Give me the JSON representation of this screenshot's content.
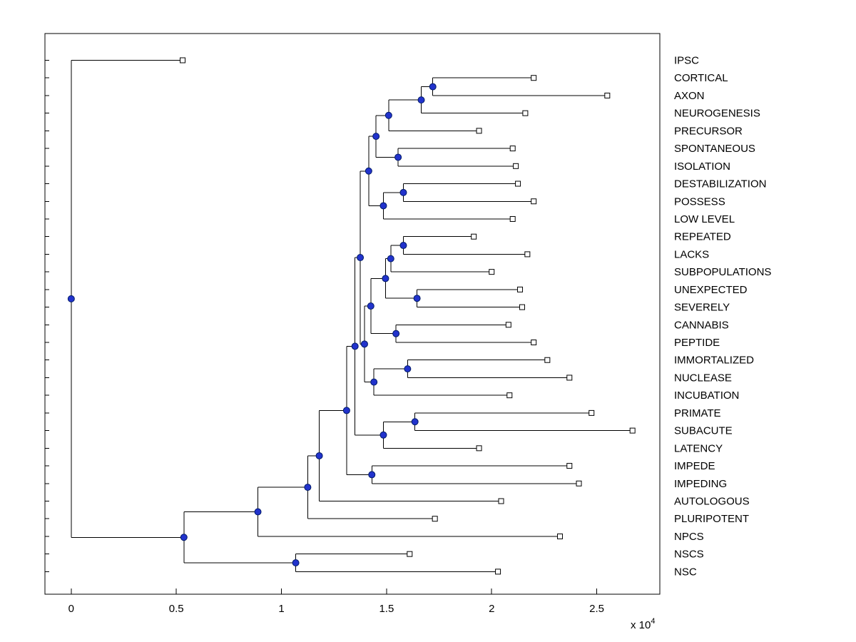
{
  "style": {
    "background": "#ffffff",
    "axis_color": "#000000",
    "line_color": "#000000",
    "text_color": "#000000",
    "node_color": "#2233cc",
    "node_edge_color": "#001a66",
    "leaf_marker_fill": "#ffffff"
  },
  "chart_data": {
    "type": "dendrogram",
    "title": "",
    "description": "Left-rooted phylogenetic/hierarchical-cluster tree; internal nodes shown as filled blue circles, leaves as open squares, leaf names listed on the right",
    "xlim": [
      -1250,
      28000
    ],
    "x_axis": {
      "multiplier": "x 10",
      "exponent": "4",
      "ticks": [
        {
          "label": "0",
          "value": 0
        },
        {
          "label": "0.5",
          "value": 5000
        },
        {
          "label": "1",
          "value": 10000
        },
        {
          "label": "1.5",
          "value": 15000
        },
        {
          "label": "2",
          "value": 20000
        },
        {
          "label": "2.5",
          "value": 25000
        }
      ]
    },
    "leaf_labels": [
      "IPSC",
      "CORTICAL",
      "AXON",
      "NEUROGENESIS",
      "PRECURSOR",
      "SPONTANEOUS",
      "ISOLATION",
      "DESTABILIZATION",
      "POSSESS",
      "LOW LEVEL",
      "REPEATED",
      "LACKS",
      "SUBPOPULATIONS",
      "UNEXPECTED",
      "SEVERELY",
      "CANNABIS",
      "PEPTIDE",
      "IMMORTALIZED",
      "NUCLEASE",
      "INCUBATION",
      "PRIMATE",
      "SUBACUTE",
      "LATENCY",
      "IMPEDE",
      "IMPEDING",
      "AUTOLOGOUS",
      "PLURIPOTENT",
      "NPCS",
      "NSCS",
      "NSC"
    ],
    "tree": {
      "x": 0,
      "children": [
        {
          "name": "IPSC",
          "x": 5300
        },
        {
          "x": 5360,
          "children": [
            {
              "x": 8880,
              "children": [
                {
                  "x": 11250,
                  "children": [
                    {
                      "x": 11800,
                      "children": [
                        {
                          "x": 13100,
                          "children": [
                            {
                              "x": 13500,
                              "children": [
                                {
                                  "x": 13750,
                                  "children": [
                                    {
                                      "x": 14150,
                                      "children": [
                                        {
                                          "x": 14500,
                                          "children": [
                                            {
                                              "x": 15100,
                                              "children": [
                                                {
                                                  "x": 16650,
                                                  "children": [
                                                    {
                                                      "x": 17200,
                                                      "children": [
                                                        {
                                                          "name": "CORTICAL",
                                                          "x": 22000
                                                        },
                                                        {
                                                          "name": "AXON",
                                                          "x": 25500
                                                        }
                                                      ]
                                                    },
                                                    {
                                                      "name": "NEUROGENESIS",
                                                      "x": 21600
                                                    }
                                                  ]
                                                },
                                                {
                                                  "name": "PRECURSOR",
                                                  "x": 19400
                                                }
                                              ]
                                            },
                                            {
                                              "x": 15550,
                                              "children": [
                                                {
                                                  "name": "SPONTANEOUS",
                                                  "x": 21000
                                                },
                                                {
                                                  "name": "ISOLATION",
                                                  "x": 21150
                                                }
                                              ]
                                            }
                                          ]
                                        },
                                        {
                                          "x": 14850,
                                          "children": [
                                            {
                                              "x": 15800,
                                              "children": [
                                                {
                                                  "name": "DESTABILIZATION",
                                                  "x": 21250
                                                },
                                                {
                                                  "name": "POSSESS",
                                                  "x": 22000
                                                }
                                              ]
                                            },
                                            {
                                              "name": "LOW LEVEL",
                                              "x": 21000
                                            }
                                          ]
                                        }
                                      ]
                                    },
                                    {
                                      "x": 13950,
                                      "children": [
                                        {
                                          "x": 14250,
                                          "children": [
                                            {
                                              "x": 14950,
                                              "children": [
                                                {
                                                  "x": 15200,
                                                  "children": [
                                                    {
                                                      "x": 15800,
                                                      "children": [
                                                        {
                                                          "name": "REPEATED",
                                                          "x": 19150
                                                        },
                                                        {
                                                          "name": "LACKS",
                                                          "x": 21700
                                                        }
                                                      ]
                                                    },
                                                    {
                                                      "name": "SUBPOPULATIONS",
                                                      "x": 20000
                                                    }
                                                  ]
                                                },
                                                {
                                                  "x": 16450,
                                                  "children": [
                                                    {
                                                      "name": "UNEXPECTED",
                                                      "x": 21350
                                                    },
                                                    {
                                                      "name": "SEVERELY",
                                                      "x": 21450
                                                    }
                                                  ]
                                                }
                                              ]
                                            },
                                            {
                                              "x": 15450,
                                              "children": [
                                                {
                                                  "name": "CANNABIS",
                                                  "x": 20800
                                                },
                                                {
                                                  "name": "PEPTIDE",
                                                  "x": 22000
                                                }
                                              ]
                                            }
                                          ]
                                        },
                                        {
                                          "x": 14400,
                                          "children": [
                                            {
                                              "x": 16000,
                                              "children": [
                                                {
                                                  "name": "IMMORTALIZED",
                                                  "x": 22650
                                                },
                                                {
                                                  "name": "NUCLEASE",
                                                  "x": 23700
                                                }
                                              ]
                                            },
                                            {
                                              "name": "INCUBATION",
                                              "x": 20850
                                            }
                                          ]
                                        }
                                      ]
                                    }
                                  ]
                                },
                                {
                                  "x": 14850,
                                  "children": [
                                    {
                                      "x": 16350,
                                      "children": [
                                        {
                                          "name": "PRIMATE",
                                          "x": 24750
                                        },
                                        {
                                          "name": "SUBACUTE",
                                          "x": 26700
                                        }
                                      ]
                                    },
                                    {
                                      "name": "LATENCY",
                                      "x": 19400
                                    }
                                  ]
                                }
                              ]
                            },
                            {
                              "x": 14300,
                              "children": [
                                {
                                  "name": "IMPEDE",
                                  "x": 23700
                                },
                                {
                                  "name": "IMPEDING",
                                  "x": 24150
                                }
                              ]
                            }
                          ]
                        },
                        {
                          "name": "AUTOLOGOUS",
                          "x": 20450
                        }
                      ]
                    },
                    {
                      "name": "PLURIPOTENT",
                      "x": 17300
                    }
                  ]
                },
                {
                  "name": "NPCS",
                  "x": 23250
                }
              ]
            },
            {
              "x": 10680,
              "children": [
                {
                  "name": "NSCS",
                  "x": 16100
                },
                {
                  "name": "NSC",
                  "x": 20300
                }
              ]
            }
          ]
        }
      ]
    }
  }
}
